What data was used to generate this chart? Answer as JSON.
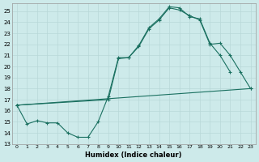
{
  "xlabel": "Humidex (Indice chaleur)",
  "xlim": [
    -0.5,
    23.5
  ],
  "ylim": [
    13,
    25.7
  ],
  "yticks": [
    13,
    14,
    15,
    16,
    17,
    18,
    19,
    20,
    21,
    22,
    23,
    24,
    25
  ],
  "xticks": [
    0,
    1,
    2,
    3,
    4,
    5,
    6,
    7,
    8,
    9,
    10,
    11,
    12,
    13,
    14,
    15,
    16,
    17,
    18,
    19,
    20,
    21,
    22,
    23
  ],
  "line_color": "#1a7060",
  "bg_color": "#cdeaea",
  "grid_color": "#b8d8d8",
  "line1_x": [
    0,
    1,
    2,
    3,
    4,
    5,
    6,
    7,
    8,
    9,
    10,
    11,
    12,
    13,
    14,
    15,
    16,
    17,
    18,
    19,
    20,
    21
  ],
  "line1_y": [
    16.5,
    14.8,
    15.1,
    14.9,
    14.9,
    14.0,
    13.6,
    13.6,
    15.0,
    17.3,
    20.8,
    20.8,
    21.9,
    23.5,
    24.3,
    25.4,
    25.3,
    24.5,
    24.3,
    22.1,
    21.0,
    19.5
  ],
  "line2_x": [
    0,
    9,
    10,
    11,
    12,
    13,
    14,
    15,
    16,
    17,
    18,
    19,
    20,
    21,
    22,
    23
  ],
  "line2_y": [
    16.5,
    17.0,
    20.7,
    20.8,
    21.8,
    23.4,
    24.2,
    25.3,
    25.1,
    24.6,
    24.2,
    22.0,
    22.1,
    21.0,
    19.5,
    18.0
  ],
  "line3_x": [
    0,
    23
  ],
  "line3_y": [
    16.5,
    18.0
  ]
}
